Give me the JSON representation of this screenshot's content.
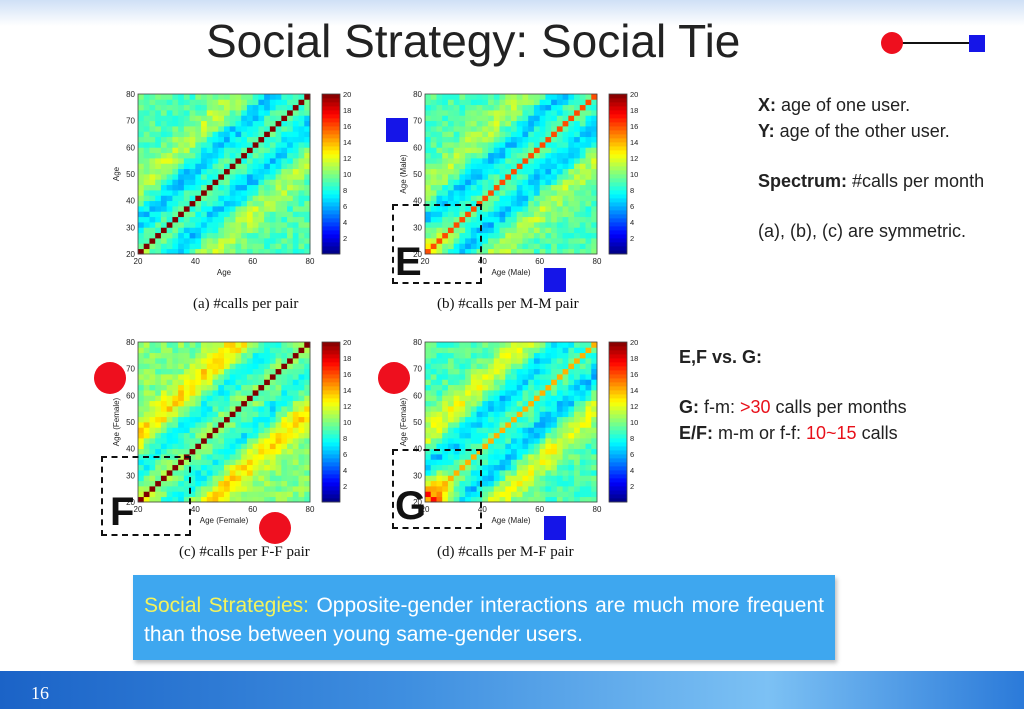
{
  "slide": {
    "title": "Social Strategy: Social Tie",
    "page_number": "16"
  },
  "colors": {
    "male_marker": "#1515e8",
    "female_marker": "#ee0f1e",
    "highlight_red": "#e8101a",
    "callout_bg": "#3ea7ef",
    "callout_highlight": "#f4f35c"
  },
  "notes": {
    "x_label": "X:",
    "x_text": " age of one user.",
    "y_label": "Y:",
    "y_text": " age of the other user.",
    "spectrum_label": "Spectrum:",
    "spectrum_text": " #calls per month",
    "symmetric": "(a), (b), (c) are symmetric."
  },
  "comparison": {
    "heading": "E,F vs.  G:",
    "g_label": "G:",
    "g_pre": " f-m: ",
    "g_value": ">30",
    "g_post": " calls per months",
    "ef_label": "E/F:",
    "ef_pre": " m-m or f-f: ",
    "ef_value": "10~15",
    "ef_post": " calls"
  },
  "callout": {
    "label": "Social Strategies:",
    "text": " Opposite-gender interactions are much more frequent than those between young same-gender users."
  },
  "chart_data": [
    {
      "type": "heatmap",
      "caption": "(a)  #calls per pair",
      "xlabel": "Age",
      "ylabel": "Age",
      "x_ticks": [
        "20",
        "40",
        "60",
        "80"
      ],
      "y_ticks": [
        "20",
        "30",
        "40",
        "50",
        "60",
        "70",
        "80"
      ],
      "xlim": [
        20,
        80
      ],
      "ylim": [
        20,
        80
      ],
      "colorbar_ticks": [
        "2",
        "4",
        "6",
        "8",
        "10",
        "12",
        "14",
        "16",
        "18",
        "20"
      ],
      "colorbar_range": [
        0,
        20
      ],
      "description_peak_diagonal": 20,
      "background_level": 9,
      "band_offset_years": 25,
      "band_level": 11,
      "young_level": 11
    },
    {
      "type": "heatmap",
      "caption": "(b)  #calls per M-M pair",
      "xlabel": "Age (Male)",
      "ylabel": "Age (Male)",
      "x_ticks": [
        "20",
        "40",
        "60",
        "80"
      ],
      "y_ticks": [
        "20",
        "30",
        "40",
        "50",
        "60",
        "70",
        "80"
      ],
      "xlim": [
        20,
        80
      ],
      "ylim": [
        20,
        80
      ],
      "colorbar_ticks": [
        "2",
        "4",
        "6",
        "8",
        "10",
        "12",
        "14",
        "16",
        "18",
        "20"
      ],
      "colorbar_range": [
        0,
        20
      ],
      "description_peak_diagonal": 16,
      "background_level": 9,
      "band_offset_years": 25,
      "band_level": 11,
      "young_level": 14,
      "region_label": "E"
    },
    {
      "type": "heatmap",
      "caption": "(c)  #calls per F-F pair",
      "xlabel": "Age (Female)",
      "ylabel": "Age (Female)",
      "x_ticks": [
        "20",
        "40",
        "60",
        "80"
      ],
      "y_ticks": [
        "20",
        "30",
        "40",
        "50",
        "60",
        "70",
        "80"
      ],
      "xlim": [
        20,
        80
      ],
      "ylim": [
        20,
        80
      ],
      "colorbar_ticks": [
        "2",
        "4",
        "6",
        "8",
        "10",
        "12",
        "14",
        "16",
        "18",
        "20"
      ],
      "colorbar_range": [
        0,
        20
      ],
      "description_peak_diagonal": 20,
      "background_level": 10,
      "band_offset_years": 25,
      "band_level": 13,
      "young_level": 12,
      "region_label": "F"
    },
    {
      "type": "heatmap",
      "caption": "(d)  #calls per M-F pair",
      "xlabel": "Age (Male)",
      "ylabel": "Age (Female)",
      "x_ticks": [
        "20",
        "40",
        "60",
        "80"
      ],
      "y_ticks": [
        "20",
        "30",
        "40",
        "50",
        "60",
        "70",
        "80"
      ],
      "xlim": [
        20,
        80
      ],
      "ylim": [
        20,
        80
      ],
      "colorbar_ticks": [
        "2",
        "4",
        "6",
        "8",
        "10",
        "12",
        "14",
        "16",
        "18",
        "20"
      ],
      "colorbar_range": [
        0,
        20
      ],
      "description_peak_diagonal": 14,
      "background_level": 9,
      "band_offset_years": 25,
      "band_level": 12,
      "young_level": 20,
      "region_label": "G"
    }
  ]
}
